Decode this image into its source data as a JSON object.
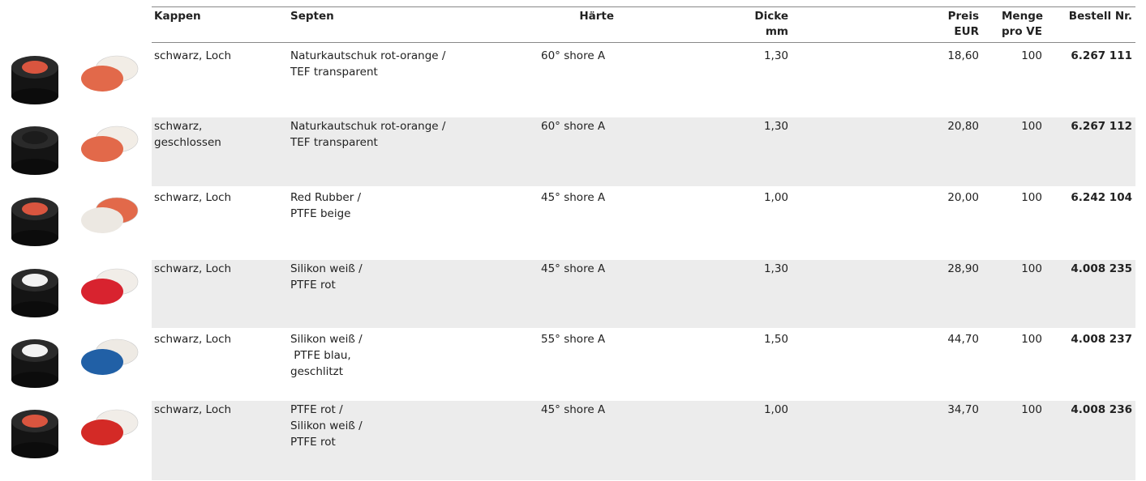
{
  "table": {
    "header": [
      [
        "Kappen"
      ],
      [
        "Septen"
      ],
      [
        "Härte"
      ],
      [
        "Dicke",
        "mm"
      ],
      [
        "Preis",
        "EUR"
      ],
      [
        "Menge",
        "pro VE"
      ],
      [
        "Bestell Nr."
      ]
    ],
    "rows": [
      {
        "kappen": [
          "schwarz, Loch"
        ],
        "septen": [
          "Naturkautschuk rot-orange /",
          "TEF transparent"
        ],
        "haerte": "60° shore A",
        "dicke": "1,30",
        "preis": "18,60",
        "menge": "100",
        "bestell": "6.267 111"
      },
      {
        "kappen": [
          "schwarz,",
          "geschlossen"
        ],
        "septen": [
          "Naturkautschuk rot-orange /",
          "TEF transparent"
        ],
        "haerte": "60° shore A",
        "dicke": "1,30",
        "preis": "20,80",
        "menge": "100",
        "bestell": "6.267 112"
      },
      {
        "kappen": [
          "schwarz, Loch"
        ],
        "septen": [
          "Red Rubber /",
          "PTFE beige"
        ],
        "haerte": "45° shore A",
        "dicke": "1,00",
        "preis": "20,00",
        "menge": "100",
        "bestell": "6.242 104"
      },
      {
        "kappen": [
          "schwarz, Loch"
        ],
        "septen": [
          "Silikon weiß /",
          "PTFE rot"
        ],
        "haerte": "45° shore A",
        "dicke": "1,30",
        "preis": "28,90",
        "menge": "100",
        "bestell": "4.008 235"
      },
      {
        "kappen": [
          "schwarz, Loch"
        ],
        "septen": [
          "Silikon weiß /",
          " PTFE blau,",
          "geschlitzt"
        ],
        "haerte": "55° shore A",
        "dicke": "1,50",
        "preis": "44,70",
        "menge": "100",
        "bestell": "4.008 237"
      },
      {
        "kappen": [
          "schwarz, Loch"
        ],
        "septen": [
          "PTFE rot /",
          "Silikon weiß /",
          "PTFE rot"
        ],
        "haerte": "45° shore A",
        "dicke": "1,00",
        "preis": "34,70",
        "menge": "100",
        "bestell": "4.008 236"
      }
    ]
  }
}
